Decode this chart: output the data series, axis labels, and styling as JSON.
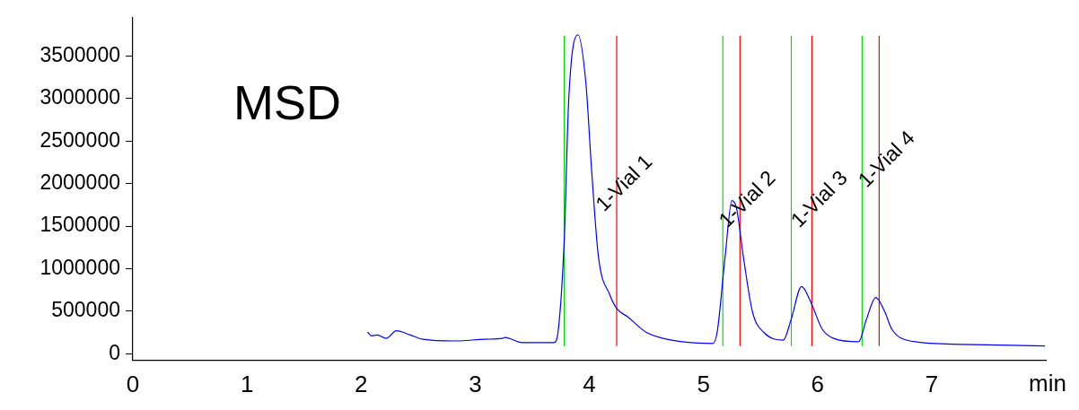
{
  "chart_data": {
    "type": "line",
    "title": "MSD",
    "xlabel": "min",
    "x": [
      2.06,
      2.09,
      2.14,
      2.22,
      2.31,
      2.43,
      2.54,
      2.82,
      3.09,
      3.24,
      3.26,
      3.41,
      3.69,
      3.73,
      3.78,
      3.82,
      3.9,
      3.97,
      4.02,
      4.08,
      4.18,
      4.24,
      4.34,
      4.5,
      4.72,
      5.08,
      5.12,
      5.19,
      5.25,
      5.29,
      5.35,
      5.43,
      5.53,
      5.7,
      5.77,
      5.86,
      5.94,
      6.04,
      6.14,
      6.36,
      6.43,
      6.51,
      6.59,
      6.65,
      6.81,
      7.26,
      7.99
    ],
    "series": [
      {
        "color": "#0000ff",
        "values": [
          250000,
          210000,
          220000,
          180000,
          270000,
          220000,
          170000,
          150000,
          170000,
          180000,
          190000,
          130000,
          130000,
          300000,
          1330000,
          3000000,
          3750000,
          3180000,
          2160000,
          1140000,
          690000,
          530000,
          430000,
          250000,
          160000,
          120000,
          250000,
          1140000,
          1800000,
          1710000,
          1140000,
          490000,
          250000,
          160000,
          410000,
          790000,
          610000,
          290000,
          180000,
          140000,
          410000,
          660000,
          490000,
          290000,
          150000,
          110000,
          90000
        ]
      }
    ],
    "xlim": [
      0,
      8
    ],
    "xticks": [
      0,
      1,
      2,
      3,
      4,
      5,
      6,
      7
    ],
    "ylim": [
      -80000,
      3950000
    ],
    "yticks": [
      0,
      500000,
      1000000,
      1500000,
      2000000,
      2500000,
      3000000,
      3500000
    ],
    "grid": false,
    "legend": false,
    "marker": "none",
    "line_style": "solid",
    "ref_lines": [
      {
        "axis": "x",
        "value": 3.78,
        "color": "#00e000"
      },
      {
        "axis": "x",
        "value": 4.24,
        "color": "#ff0000"
      },
      {
        "axis": "x",
        "value": 5.17,
        "color": "#00e000"
      },
      {
        "axis": "x",
        "value": 5.32,
        "color": "#ff0000"
      },
      {
        "axis": "x",
        "value": 5.77,
        "color": "#00e000"
      },
      {
        "axis": "x",
        "value": 5.95,
        "color": "#ff0000"
      },
      {
        "axis": "x",
        "value": 6.39,
        "color": "#00e000"
      },
      {
        "axis": "x",
        "value": 6.54,
        "color": "#ff0000"
      }
    ],
    "annotations": [
      {
        "text": "1-Vial 1",
        "x": 4.24,
        "y": 1810000
      },
      {
        "text": "1-Vial 2",
        "x": 5.32,
        "y": 1620000
      },
      {
        "text": "1-Vial 3",
        "x": 5.95,
        "y": 1620000
      },
      {
        "text": "1-Vial 4",
        "x": 6.54,
        "y": 2090000
      }
    ]
  }
}
